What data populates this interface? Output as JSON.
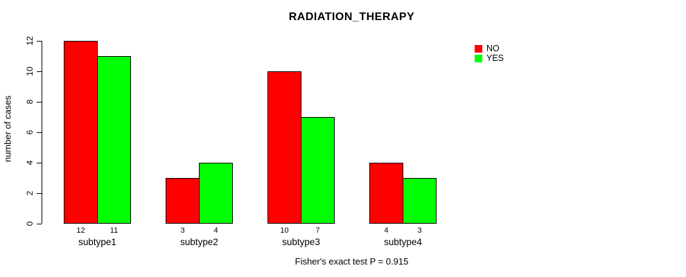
{
  "chart_data": {
    "type": "bar",
    "title": "RADIATION_THERAPY",
    "categories": [
      "subtype1",
      "subtype2",
      "subtype3",
      "subtype4"
    ],
    "series": [
      {
        "name": "NO",
        "color": "#ff0000",
        "values": [
          12,
          3,
          10,
          4
        ]
      },
      {
        "name": "YES",
        "color": "#00ff00",
        "values": [
          11,
          4,
          7,
          3
        ]
      }
    ],
    "ylabel": "number of cases",
    "xlabel": "",
    "ylim": [
      0,
      12
    ],
    "yticks": [
      0,
      2,
      4,
      6,
      8,
      10,
      12
    ],
    "bar_value_labels": true,
    "legend_position": "top-right",
    "grid": false,
    "caption": "Fisher's exact test P = 0.915",
    "axis_color": "#000000",
    "bar_border_color": "#000000",
    "background_color": "#ffffff",
    "text_color": "#000000"
  }
}
